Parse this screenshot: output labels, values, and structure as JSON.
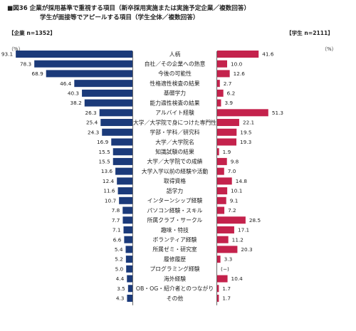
{
  "header": {
    "title_line1": "■図36 企業が採用基準で重視する項目（新卒採用実施または実施予定企業／複数回答）",
    "title_line2": "学生が面接等でアピールする項目（学生全体／複数回答）",
    "left_label": "【企業 n=1352】",
    "right_label": "【学生 n=2111】",
    "left_unit": "（%）",
    "right_unit": "（%）"
  },
  "colors": {
    "company_bar": "#1b3a7a",
    "student_bar": "#c4224c",
    "axis_line": "#444444"
  },
  "chart_data": {
    "type": "bar",
    "orientation": "horizontal-butterfly",
    "categories": [
      "人柄",
      "自社／その企業への熱意",
      "今後の可能性",
      "性格適性検査の結果",
      "基礎学力",
      "能力適性検査の結果",
      "アルバイト経験",
      "大学／大学院で身につけた専門性",
      "学部・学科／研究科",
      "大学／大学院名",
      "知識試験の結果",
      "大学／大学院での成績",
      "大学入学以前の経験や活動",
      "取得資格",
      "語学力",
      "インターンシップ経験",
      "パソコン経験・スキル",
      "所属クラブ・サークル",
      "趣味・特技",
      "ボランティア経験",
      "所属ゼミ・研究室",
      "履修履歴",
      "プログラミング経験",
      "海外経験",
      "OB・OG・紹介者とのつながり",
      "その他"
    ],
    "series": [
      {
        "name": "企業 n=1352",
        "values": [
          93.1,
          78.3,
          68.9,
          46.4,
          40.3,
          38.2,
          26.3,
          25.4,
          24.3,
          16.9,
          15.5,
          15.5,
          13.6,
          12.4,
          11.6,
          10.7,
          7.8,
          7.7,
          7.1,
          6.6,
          5.4,
          5.2,
          5.0,
          4.4,
          3.5,
          4.3
        ],
        "labels": [
          "93.1",
          "78.3",
          "68.9",
          "46.4",
          "40.3",
          "38.2",
          "26.3",
          "25.4",
          "24.3",
          "16.9",
          "15.5",
          "15.5",
          "13.6",
          "12.4",
          "11.6",
          "10.7",
          "7.8",
          "7.7",
          "7.1",
          "6.6",
          "5.4",
          "5.2",
          "5.0",
          "4.4",
          "3.5",
          "4.3"
        ]
      },
      {
        "name": "学生 n=2111",
        "values": [
          41.6,
          10.0,
          12.6,
          2.7,
          6.2,
          3.9,
          51.3,
          22.1,
          19.5,
          19.3,
          1.9,
          9.8,
          7.0,
          14.8,
          10.1,
          9.1,
          7.2,
          28.5,
          17.1,
          11.2,
          20.3,
          3.3,
          null,
          10.4,
          1.7,
          1.7
        ],
        "labels": [
          "41.6",
          "10.0",
          "12.6",
          "2.7",
          "6.2",
          "3.9",
          "51.3",
          "22.1",
          "19.5",
          "19.3",
          "1.9",
          "9.8",
          "7.0",
          "14.8",
          "10.1",
          "9.1",
          "7.2",
          "28.5",
          "17.1",
          "11.2",
          "20.3",
          "3.3",
          "(−)",
          "10.4",
          "1.7",
          "1.7"
        ]
      }
    ],
    "xlim_left": [
      0,
      100
    ],
    "xlim_right": [
      0,
      100
    ],
    "grid": false
  }
}
